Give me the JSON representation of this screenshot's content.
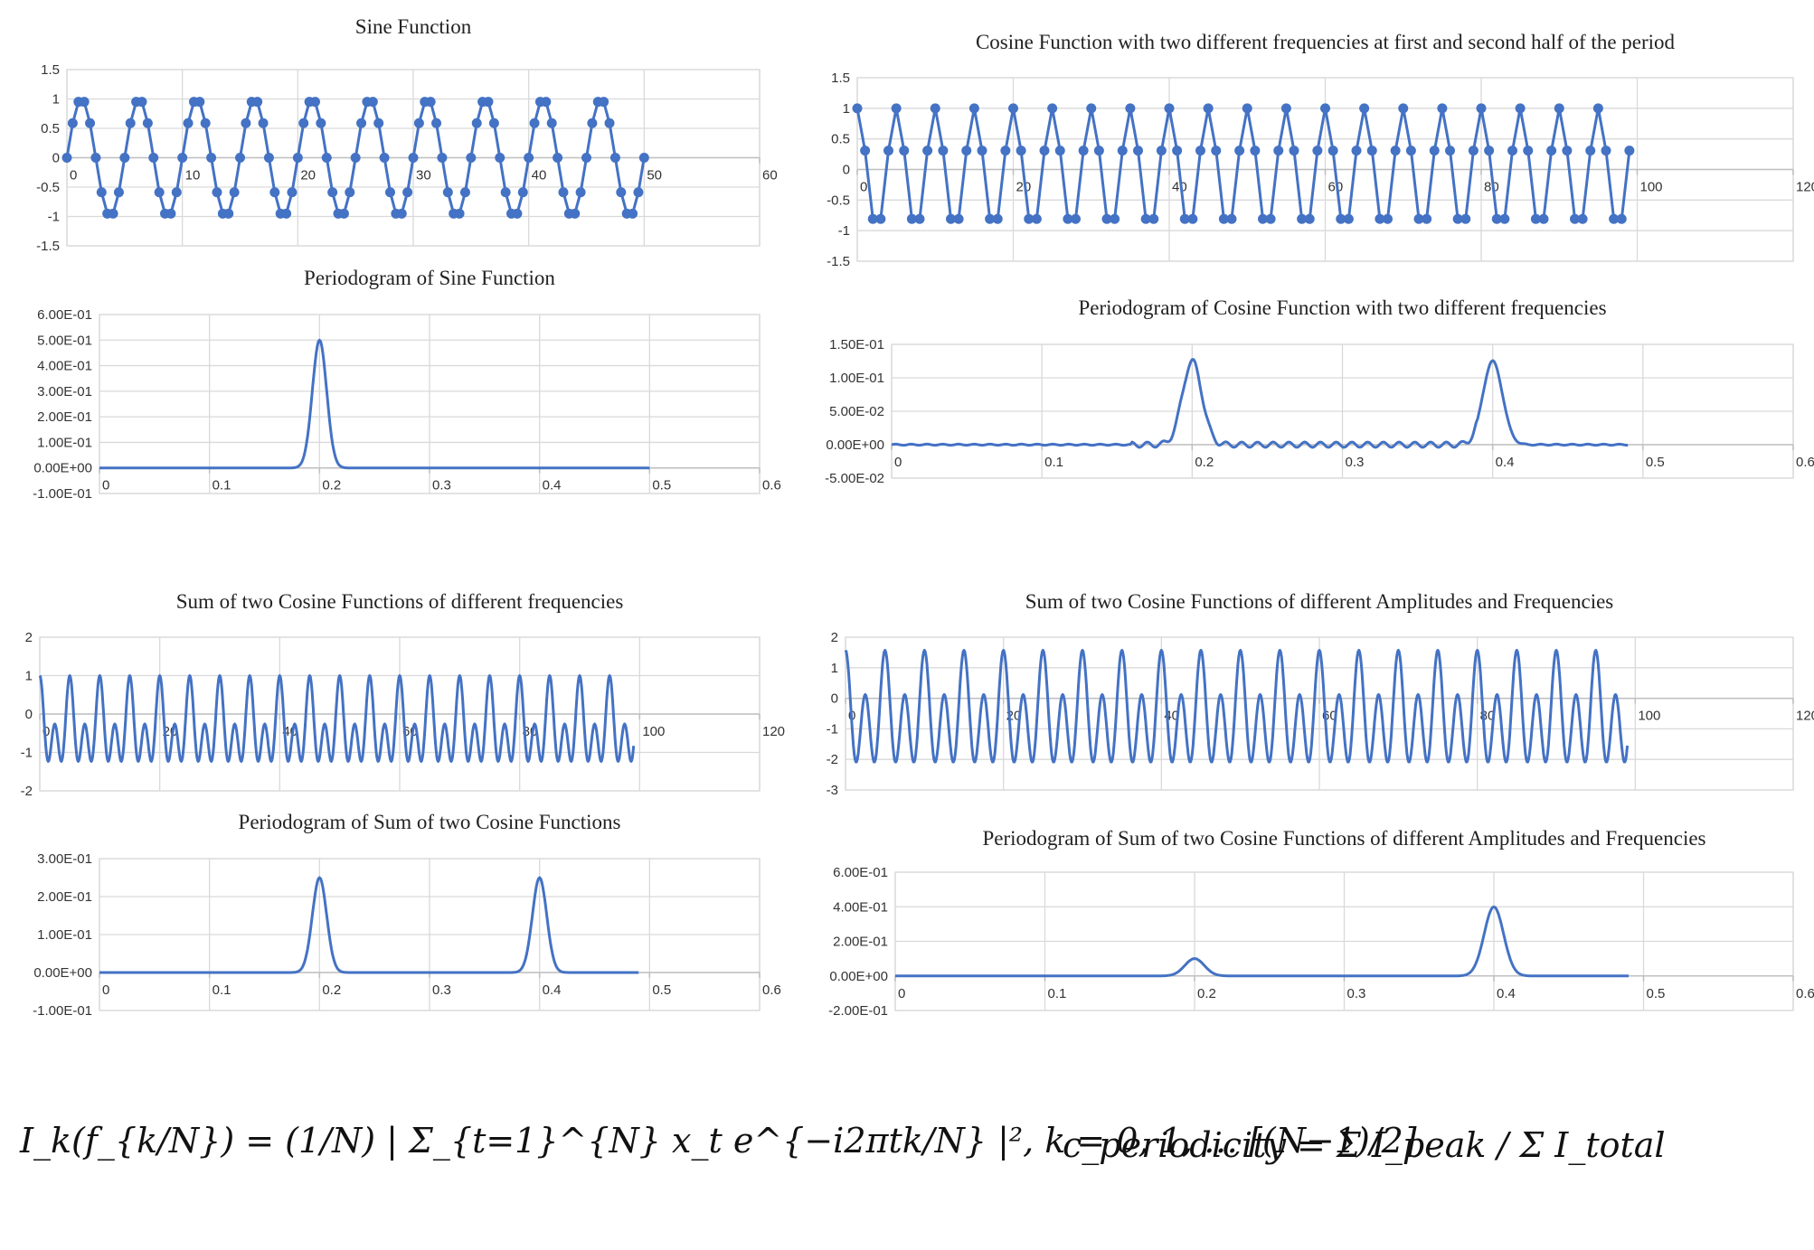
{
  "chart_data": [
    {
      "id": "sine",
      "type": "line",
      "title": "Sine Function",
      "markers": true,
      "xlim": [
        0,
        60
      ],
      "xticks": [
        0,
        10,
        20,
        30,
        40,
        50,
        60
      ],
      "ylim": [
        -1.5,
        1.5
      ],
      "yticks": [
        -1.5,
        -1,
        -0.5,
        0,
        0.5,
        1,
        1.5
      ],
      "ytick_labels": [
        "-1.5",
        "-1",
        "-0.5",
        "0",
        "0.5",
        "1",
        "1.5"
      ],
      "x_axis_at": 0,
      "series": [
        {
          "formula": "y = sin(2*pi*0.2*t)",
          "x_range": [
            0,
            50
          ],
          "step": 0.5,
          "color": "#4472c4"
        }
      ]
    },
    {
      "id": "pgram-sine",
      "type": "line",
      "title": "Periodogram of Sine Function",
      "xlim": [
        0,
        0.6
      ],
      "xticks": [
        0,
        0.1,
        0.2,
        0.3,
        0.4,
        0.5,
        0.6
      ],
      "ylim": [
        -0.1,
        0.6
      ],
      "yticks": [
        -0.1,
        0,
        0.1,
        0.2,
        0.3,
        0.4,
        0.5,
        0.6
      ],
      "ytick_labels": [
        "-1.00E-01",
        "0.00E+00",
        "1.00E-01",
        "2.00E-01",
        "3.00E-01",
        "4.00E-01",
        "5.00E-01",
        "6.00E-01"
      ],
      "x_axis_at": 0,
      "series": [
        {
          "x_range": [
            0,
            0.5
          ],
          "peaks": [
            {
              "f": 0.2,
              "height": 0.5
            }
          ],
          "color": "#4472c4"
        }
      ]
    },
    {
      "id": "cos-two-freq",
      "type": "line",
      "title": "Cosine Function with two different frequencies at first and second half of the period",
      "markers": true,
      "xlim": [
        0,
        120
      ],
      "xticks": [
        0,
        20,
        40,
        60,
        80,
        100,
        120
      ],
      "ylim": [
        -1.5,
        1.5
      ],
      "yticks": [
        -1.5,
        -1,
        -0.5,
        0,
        0.5,
        1,
        1.5
      ],
      "ytick_labels": [
        "-1.5",
        "-1",
        "-0.5",
        "0",
        "0.5",
        "1",
        "1.5"
      ],
      "x_axis_at": 0,
      "series": [
        {
          "formula": "y = cos(2*pi*0.2*t)",
          "x_range": [
            0,
            99
          ],
          "step": 1,
          "color": "#4472c4"
        }
      ]
    },
    {
      "id": "pgram-cos-two-freq",
      "type": "line",
      "title": "Periodogram of Cosine Function with two different frequencies",
      "xlim": [
        0,
        0.6
      ],
      "xticks": [
        0,
        0.1,
        0.2,
        0.3,
        0.4,
        0.5,
        0.6
      ],
      "ylim": [
        -0.05,
        0.15
      ],
      "yticks": [
        -0.05,
        0,
        0.05,
        0.1,
        0.15
      ],
      "ytick_labels": [
        "-5.00E-02",
        "0.00E+00",
        "5.00E-02",
        "1.00E-01",
        "1.50E-01"
      ],
      "x_axis_at": 0,
      "series": [
        {
          "x_range": [
            0,
            0.49
          ],
          "peaks": [
            {
              "f": 0.2,
              "height": 0.125
            },
            {
              "f": 0.4,
              "height": 0.125
            }
          ],
          "color": "#4472c4"
        }
      ]
    },
    {
      "id": "sum-cos",
      "type": "line",
      "title": "Sum of two Cosine Functions of different frequencies",
      "xlim": [
        0,
        120
      ],
      "xticks": [
        0,
        20,
        40,
        60,
        80,
        100,
        120
      ],
      "ylim": [
        -2,
        2
      ],
      "yticks": [
        -2,
        -1,
        0,
        1,
        2
      ],
      "ytick_labels": [
        "-2",
        "-1",
        "0",
        "1",
        "2"
      ],
      "x_axis_at": 0,
      "series": [
        {
          "formula": "y = 0.5*cos(2*pi*0.2*t) + 0.5*cos(2*pi*0.4*t) (shape reproduction)",
          "x_range": [
            0,
            99
          ],
          "color": "#4472c4"
        }
      ]
    },
    {
      "id": "pgram-sum-cos",
      "type": "line",
      "title": "Periodogram of Sum of two Cosine Functions",
      "xlim": [
        0,
        0.6
      ],
      "xticks": [
        0,
        0.1,
        0.2,
        0.3,
        0.4,
        0.5,
        0.6
      ],
      "ylim": [
        -0.1,
        0.3
      ],
      "yticks": [
        -0.1,
        0,
        0.1,
        0.2,
        0.3
      ],
      "ytick_labels": [
        "-1.00E-01",
        "0.00E+00",
        "1.00E-01",
        "2.00E-01",
        "3.00E-01"
      ],
      "x_axis_at": 0,
      "series": [
        {
          "x_range": [
            0,
            0.49
          ],
          "peaks": [
            {
              "f": 0.2,
              "height": 0.25
            },
            {
              "f": 0.4,
              "height": 0.25
            }
          ],
          "color": "#4472c4"
        }
      ]
    },
    {
      "id": "sum-cos-amp",
      "type": "line",
      "title": "Sum of two Cosine Functions of different Amplitudes and Frequencies",
      "xlim": [
        0,
        120
      ],
      "xticks": [
        0,
        20,
        40,
        60,
        80,
        100,
        120
      ],
      "ylim": [
        -3,
        2
      ],
      "yticks": [
        -3,
        -2,
        -1,
        0,
        1,
        2
      ],
      "ytick_labels": [
        "-3",
        "-2",
        "-1",
        "0",
        "1",
        "2"
      ],
      "x_axis_at": 0,
      "series": [
        {
          "formula": "y = 0.5*cos(2*pi*0.2*t) + 1.0*cos(2*pi*0.4*t) (shape reproduction)",
          "x_range": [
            0,
            99
          ],
          "color": "#4472c4"
        }
      ]
    },
    {
      "id": "pgram-sum-cos-amp",
      "type": "line",
      "title": "Periodogram of Sum of two Cosine Functions of different Amplitudes and Frequencies",
      "xlim": [
        0,
        0.6
      ],
      "xticks": [
        0,
        0.1,
        0.2,
        0.3,
        0.4,
        0.5,
        0.6
      ],
      "ylim": [
        -0.2,
        0.6
      ],
      "yticks": [
        -0.2,
        0,
        0.2,
        0.4,
        0.6
      ],
      "ytick_labels": [
        "-2.00E-01",
        "0.00E+00",
        "2.00E-01",
        "4.00E-01",
        "6.00E-01"
      ],
      "x_axis_at": 0,
      "series": [
        {
          "x_range": [
            0,
            0.49
          ],
          "peaks": [
            {
              "f": 0.2,
              "height": 0.1
            },
            {
              "f": 0.4,
              "height": 0.4
            }
          ],
          "color": "#4472c4"
        }
      ]
    }
  ],
  "formulas": {
    "periodogram": "I_k(f_{k/N}) = (1/N) | Σ_{t=1}^{N} x_t e^{−i2πtk/N} |², k = 0, 1, … ⌈(N−1)/2⌉",
    "periodicity": "c_periodicity = Σ I_peak / Σ I_total"
  }
}
